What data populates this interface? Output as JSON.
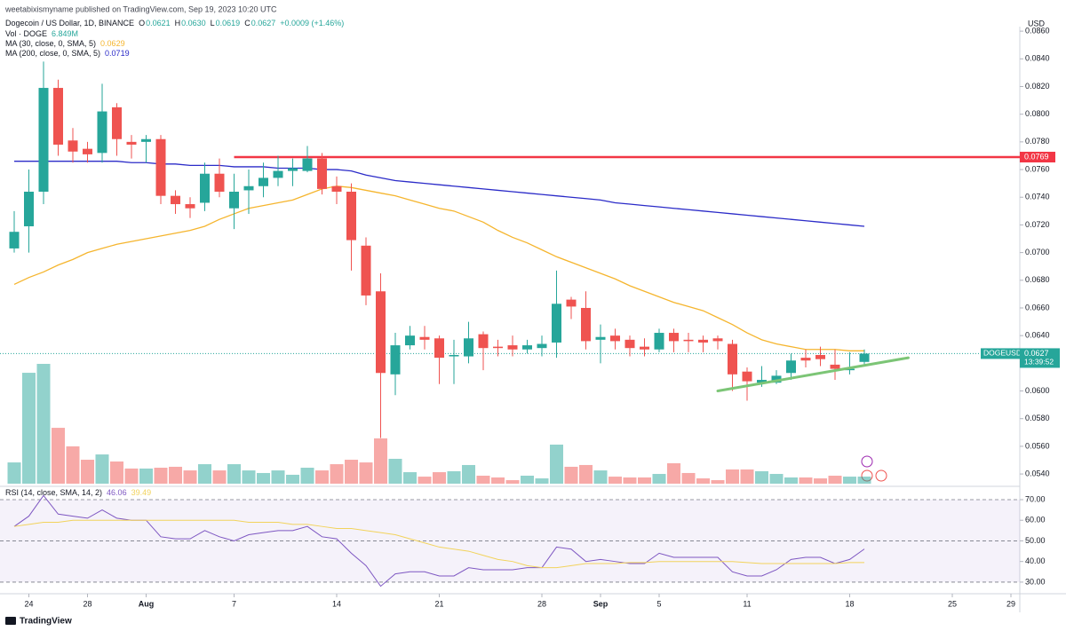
{
  "header": {
    "publisher": "weetabixismyname published on TradingView.com, Sep 19, 2023 10:20 UTC"
  },
  "footer": "TradingView",
  "chart_data": {
    "type": "candlestick",
    "title": "Dogecoin / US Dollar, 1D, BINANCE",
    "legend_items": [
      {
        "key": "O",
        "label": "0.0621"
      },
      {
        "key": "H",
        "label": "0.0630"
      },
      {
        "key": "L",
        "label": "0.0619"
      },
      {
        "key": "C",
        "label": "0.0627"
      }
    ],
    "change_label": "+0.0009 (+1.46%)",
    "currency": "USD",
    "up_color": "#26a69a",
    "down_color": "#ef5350",
    "x": [
      "2023-07-23",
      "2023-07-24",
      "2023-07-25",
      "2023-07-26",
      "2023-07-27",
      "2023-07-28",
      "2023-07-29",
      "2023-07-30",
      "2023-07-31",
      "2023-08-01",
      "2023-08-02",
      "2023-08-03",
      "2023-08-04",
      "2023-08-05",
      "2023-08-06",
      "2023-08-07",
      "2023-08-08",
      "2023-08-09",
      "2023-08-10",
      "2023-08-11",
      "2023-08-12",
      "2023-08-13",
      "2023-08-14",
      "2023-08-15",
      "2023-08-16",
      "2023-08-17",
      "2023-08-18",
      "2023-08-19",
      "2023-08-20",
      "2023-08-21",
      "2023-08-22",
      "2023-08-23",
      "2023-08-24",
      "2023-08-25",
      "2023-08-26",
      "2023-08-27",
      "2023-08-28",
      "2023-08-29",
      "2023-08-30",
      "2023-08-31",
      "2023-09-01",
      "2023-09-02",
      "2023-09-03",
      "2023-09-04",
      "2023-09-05",
      "2023-09-06",
      "2023-09-07",
      "2023-09-08",
      "2023-09-09",
      "2023-09-10",
      "2023-09-11",
      "2023-09-12",
      "2023-09-13",
      "2023-09-14",
      "2023-09-15",
      "2023-09-16",
      "2023-09-17",
      "2023-09-18",
      "2023-09-19"
    ],
    "open": [
      0.0703,
      0.0719,
      0.0744,
      0.0819,
      0.0781,
      0.0775,
      0.0772,
      0.0805,
      0.078,
      0.078,
      0.0782,
      0.0741,
      0.0735,
      0.0736,
      0.0757,
      0.0732,
      0.0745,
      0.0748,
      0.0754,
      0.0759,
      0.0759,
      0.0768,
      0.0748,
      0.0744,
      0.0705,
      0.0672,
      0.0612,
      0.0633,
      0.0639,
      0.0638,
      0.0625,
      0.0625,
      0.0641,
      0.0632,
      0.0633,
      0.063,
      0.0631,
      0.0635,
      0.0666,
      0.066,
      0.0637,
      0.064,
      0.0637,
      0.0632,
      0.063,
      0.0642,
      0.0637,
      0.0637,
      0.0638,
      0.0634,
      0.0614,
      0.0606,
      0.0606,
      0.0613,
      0.0624,
      0.0626,
      0.0619,
      0.0615,
      0.0621
    ],
    "high": [
      0.073,
      0.076,
      0.0838,
      0.0825,
      0.079,
      0.078,
      0.0822,
      0.0808,
      0.0785,
      0.0785,
      0.0785,
      0.0745,
      0.074,
      0.0765,
      0.0768,
      0.0757,
      0.076,
      0.0765,
      0.077,
      0.0768,
      0.0777,
      0.0772,
      0.0755,
      0.075,
      0.0711,
      0.0685,
      0.0642,
      0.0647,
      0.0647,
      0.064,
      0.0637,
      0.065,
      0.0643,
      0.0637,
      0.064,
      0.0637,
      0.064,
      0.0687,
      0.0668,
      0.0672,
      0.0648,
      0.0645,
      0.064,
      0.0638,
      0.0645,
      0.0645,
      0.0642,
      0.064,
      0.064,
      0.0637,
      0.0617,
      0.0618,
      0.0615,
      0.0627,
      0.063,
      0.0632,
      0.063,
      0.0628,
      0.063
    ],
    "low": [
      0.07,
      0.07,
      0.0735,
      0.077,
      0.0765,
      0.0765,
      0.0765,
      0.077,
      0.0768,
      0.0765,
      0.0735,
      0.0728,
      0.0725,
      0.073,
      0.074,
      0.0717,
      0.0728,
      0.074,
      0.0748,
      0.0748,
      0.0758,
      0.0742,
      0.0735,
      0.0687,
      0.0662,
      0.0566,
      0.0597,
      0.063,
      0.063,
      0.0605,
      0.0605,
      0.062,
      0.0615,
      0.0625,
      0.0625,
      0.0627,
      0.0625,
      0.0624,
      0.0652,
      0.063,
      0.062,
      0.063,
      0.0625,
      0.0625,
      0.0628,
      0.0628,
      0.0628,
      0.0628,
      0.063,
      0.06,
      0.0593,
      0.0603,
      0.0605,
      0.0608,
      0.0617,
      0.0618,
      0.0608,
      0.0612,
      0.0619
    ],
    "close": [
      0.0715,
      0.0744,
      0.0819,
      0.0778,
      0.0773,
      0.0771,
      0.0802,
      0.0782,
      0.0778,
      0.0782,
      0.0741,
      0.0735,
      0.0732,
      0.0757,
      0.0744,
      0.0744,
      0.0748,
      0.0754,
      0.0759,
      0.0761,
      0.0768,
      0.0746,
      0.0744,
      0.0709,
      0.0669,
      0.0613,
      0.0633,
      0.064,
      0.0637,
      0.0624,
      0.0626,
      0.0638,
      0.0631,
      0.0631,
      0.063,
      0.0633,
      0.0634,
      0.0663,
      0.0661,
      0.0636,
      0.0639,
      0.0636,
      0.0631,
      0.063,
      0.0642,
      0.0636,
      0.0636,
      0.0635,
      0.0636,
      0.0612,
      0.0607,
      0.0608,
      0.0611,
      0.0622,
      0.0622,
      0.0623,
      0.0616,
      0.0616,
      0.0627
    ],
    "volume": {
      "name": "Vol · DOGE",
      "value_label": "6.849M",
      "values": [
        20.5,
        107.0,
        115.6,
        53.9,
        36.0,
        23.1,
        28.2,
        21.4,
        14.6,
        14.6,
        15.4,
        16.3,
        12.8,
        18.8,
        12.8,
        18.8,
        12.8,
        10.3,
        12.8,
        8.6,
        15.4,
        12.8,
        18.8,
        23.1,
        20.5,
        43.7,
        24.0,
        11.1,
        6.8,
        11.1,
        12.0,
        18.0,
        7.7,
        6.0,
        3.4,
        7.7,
        5.1,
        37.7,
        16.3,
        18.0,
        12.8,
        6.8,
        6.0,
        6.0,
        9.4,
        19.7,
        10.3,
        5.1,
        3.4,
        13.7,
        13.7,
        12.0,
        9.4,
        6.0,
        6.0,
        5.1,
        7.7,
        6.8,
        6.849
      ]
    },
    "ma": [
      {
        "name": "MA (30, close, 0, SMA, 5)",
        "color": "#f5b52e",
        "value_label": "0.0629",
        "values": [
          0.0677,
          0.0682,
          0.0686,
          0.0691,
          0.0695,
          0.07,
          0.0703,
          0.0706,
          0.0708,
          0.071,
          0.0712,
          0.0714,
          0.0716,
          0.0719,
          0.0724,
          0.0728,
          0.0732,
          0.0734,
          0.0736,
          0.0738,
          0.0742,
          0.0746,
          0.0748,
          0.0747,
          0.0745,
          0.0743,
          0.0741,
          0.0738,
          0.0735,
          0.0732,
          0.073,
          0.0726,
          0.0722,
          0.0716,
          0.0711,
          0.0707,
          0.0702,
          0.0697,
          0.0693,
          0.0689,
          0.0685,
          0.0681,
          0.0676,
          0.0672,
          0.0668,
          0.0664,
          0.0661,
          0.0658,
          0.0653,
          0.0648,
          0.0642,
          0.0637,
          0.0634,
          0.0632,
          0.063,
          0.063,
          0.063,
          0.0629,
          0.0629
        ]
      },
      {
        "name": "MA (200, close, 0, SMA, 5)",
        "color": "#2b2bc8",
        "value_label": "0.0719",
        "values": [
          0.0766,
          0.0766,
          0.0766,
          0.0766,
          0.0766,
          0.0766,
          0.0766,
          0.0766,
          0.0765,
          0.0765,
          0.0764,
          0.0764,
          0.0763,
          0.0763,
          0.0763,
          0.0762,
          0.0762,
          0.0762,
          0.0761,
          0.0761,
          0.0761,
          0.076,
          0.076,
          0.0759,
          0.0756,
          0.0754,
          0.0752,
          0.0751,
          0.075,
          0.0749,
          0.0748,
          0.0747,
          0.0746,
          0.0745,
          0.0744,
          0.0743,
          0.0742,
          0.0741,
          0.074,
          0.0739,
          0.0738,
          0.0736,
          0.0735,
          0.0734,
          0.0733,
          0.0732,
          0.0731,
          0.073,
          0.0729,
          0.0728,
          0.0727,
          0.0726,
          0.0725,
          0.0724,
          0.0723,
          0.0722,
          0.0721,
          0.072,
          0.0719
        ]
      }
    ],
    "ylim": [
      0.0533,
      0.0862
    ],
    "yticks": [
      {
        "value": 0.054,
        "label": "0.0540"
      },
      {
        "value": 0.056,
        "label": "0.0560"
      },
      {
        "value": 0.058,
        "label": "0.0580"
      },
      {
        "value": 0.06,
        "label": "0.0600"
      },
      {
        "value": 0.062,
        "label": "0.0620"
      },
      {
        "value": 0.064,
        "label": "0.0640"
      },
      {
        "value": 0.066,
        "label": "0.0660"
      },
      {
        "value": 0.068,
        "label": "0.0680"
      },
      {
        "value": 0.07,
        "label": "0.0700"
      },
      {
        "value": 0.072,
        "label": "0.0720"
      },
      {
        "value": 0.074,
        "label": "0.0740"
      },
      {
        "value": 0.076,
        "label": "0.0760"
      },
      {
        "value": 0.078,
        "label": "0.0780"
      },
      {
        "value": 0.08,
        "label": "0.0800"
      },
      {
        "value": 0.082,
        "label": "0.0820"
      },
      {
        "value": 0.084,
        "label": "0.0840"
      },
      {
        "value": 0.086,
        "label": "0.0860"
      }
    ],
    "xticks": [
      {
        "value": "2023-07-24",
        "label": "24"
      },
      {
        "value": "2023-07-28",
        "label": "28"
      },
      {
        "value": "2023-08-01",
        "label": "Aug"
      },
      {
        "value": "2023-08-07",
        "label": "7"
      },
      {
        "value": "2023-08-14",
        "label": "14"
      },
      {
        "value": "2023-08-21",
        "label": "21"
      },
      {
        "value": "2023-08-28",
        "label": "28"
      },
      {
        "value": "2023-09-01",
        "label": "Sep"
      },
      {
        "value": "2023-09-05",
        "label": "5"
      },
      {
        "value": "2023-09-11",
        "label": "11"
      },
      {
        "value": "2023-09-18",
        "label": "18"
      },
      {
        "value": "2023-09-25",
        "label": "25"
      },
      {
        "value": "2023-09-29",
        "label": "29"
      }
    ],
    "hline": {
      "value": 0.0769,
      "label": "0.0769",
      "start": "2023-08-07",
      "color": "#f23645"
    },
    "trendline": {
      "x": [
        "2023-09-09",
        "2023-09-22"
      ],
      "values": [
        0.06,
        0.0624
      ],
      "color": "#7cc576"
    },
    "last_price": {
      "symbol": "DOGEUSD",
      "label": "0.0627",
      "countdown": "13:39:52"
    },
    "rsi": {
      "name": "RSI (14, close, SMA, 14, 2)",
      "ylim": [
        24.8,
        74.3
      ],
      "yticks": [
        {
          "value": 70,
          "label": "70.00"
        },
        {
          "value": 60,
          "label": "60.00"
        },
        {
          "value": 50,
          "label": "50.00"
        },
        {
          "value": 40,
          "label": "40.00"
        },
        {
          "value": 30,
          "label": "30.00"
        }
      ],
      "series": [
        {
          "color": "#7e57c2",
          "value_label": "46.06",
          "values": [
            57,
            62,
            72,
            63,
            62,
            61,
            65,
            61,
            60,
            60,
            52,
            51,
            51,
            55,
            52,
            50,
            53,
            54,
            55,
            55,
            57,
            52,
            51,
            44,
            38,
            28,
            34,
            35,
            35,
            33,
            33,
            37,
            36,
            36,
            36,
            37,
            37,
            47,
            46,
            40,
            41,
            40,
            39,
            39,
            44,
            42,
            42,
            42,
            42,
            35,
            33,
            33,
            36,
            41,
            42,
            42,
            39,
            41,
            46.06
          ]
        },
        {
          "color": "#f2d35c",
          "value_label": "39.49",
          "values": [
            57,
            58,
            59,
            59,
            60,
            60,
            60,
            60,
            60,
            60,
            60,
            60,
            60,
            60,
            60,
            60,
            59,
            59,
            59,
            58,
            58,
            57,
            56,
            56,
            55,
            54,
            53,
            51,
            49,
            47,
            46,
            45,
            43,
            41,
            40,
            38,
            37,
            37,
            38,
            39,
            39,
            39,
            39.5,
            39.5,
            40,
            40,
            40,
            40,
            40,
            40,
            39.5,
            39,
            39,
            39,
            39,
            39,
            39,
            39.5,
            39.49
          ]
        }
      ]
    }
  }
}
